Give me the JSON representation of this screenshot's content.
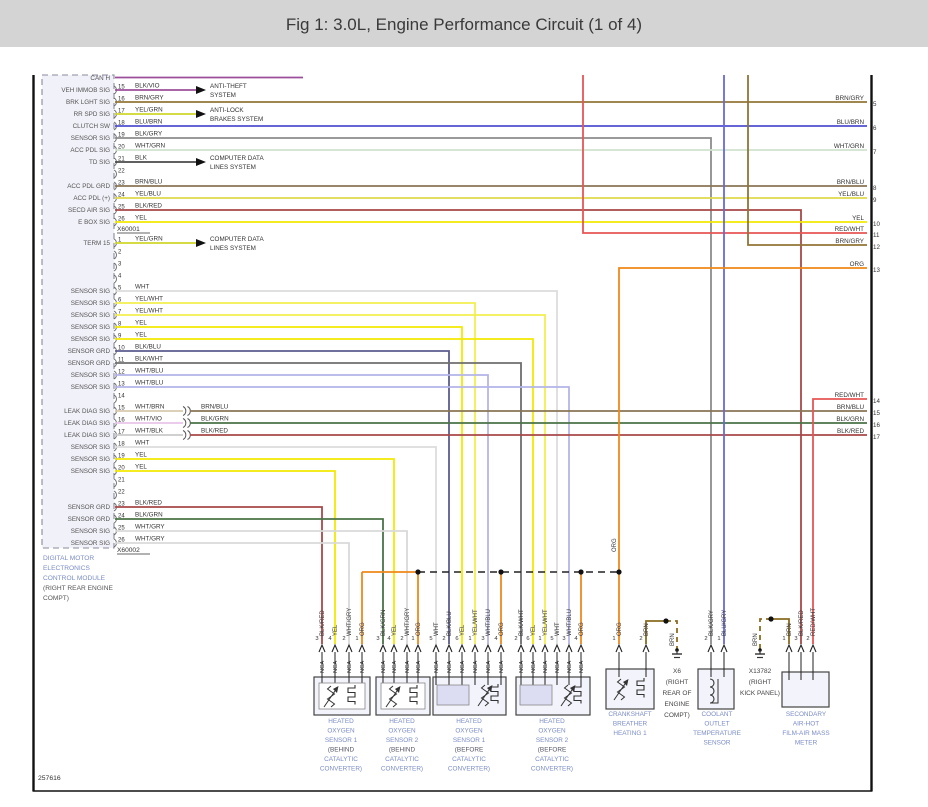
{
  "header": {
    "title": "Fig 1: 3.0L, Engine Performance Circuit (1 of 4)"
  },
  "figure_number": "257616",
  "org_label": "ORG",
  "ground_wire_color": "BRN",
  "wire_colors": {
    "BLK/VIO": "#9b4f9b",
    "BRN/GRY": "#927436",
    "YEL/GRN": "#cfd62a",
    "BLU/BRN": "#4f4fd0",
    "BLK/GRY": "#8c8c8c",
    "WHT/GRN": "#cfe3cf",
    "BLK": "#4a4a4a",
    "BRN/BLU": "#8a7454",
    "YEL/BLU": "#e0da4a",
    "BLK/RED": "#a84848",
    "YEL": "#f2ea00",
    "RED/WHT": "#e85555",
    "ORG": "#f08818",
    "WHT": "#dcdcdc",
    "YEL/WHT": "#f4ef4f",
    "BLK/BLU": "#5c5c8e",
    "BLK/WHT": "#6e6e6e",
    "WHT/BLU": "#b4b4ea",
    "WHT/BRN": "#d8c9ae",
    "WHT/VIO": "#eac4ea",
    "WHT/BLK": "#c9c9c9",
    "BLK/GRN": "#4a7346",
    "WHT/GRY": "#d9d9d9",
    "BLU/GRY": "#6868e0",
    "BRN": "#8a6c20"
  },
  "system_arrows": {
    "anti_theft": [
      "ANTI-THEFT",
      "SYSTEM"
    ],
    "abs": [
      "ANTI-LOCK",
      "BRAKES SYSTEM"
    ],
    "cdl": [
      "COMPUTER DATA",
      "LINES SYSTEM"
    ]
  },
  "dme": {
    "top_label": "CAN H",
    "caption_lines": [
      "DIGITAL MOTOR",
      "ELECTRONICS",
      "CONTROL MODULE",
      "(RIGHT REAR ENGINE",
      "COMPT)"
    ],
    "x60001": {
      "id": "X60001",
      "pins": [
        {
          "num": "15",
          "signal": "VEH IMMOB SIG",
          "color": "BLK/VIO"
        },
        {
          "num": "16",
          "signal": "BRK LGHT SIG",
          "color": "BRN/GRY"
        },
        {
          "num": "17",
          "signal": "RR SPD SIG",
          "color": "YEL/GRN"
        },
        {
          "num": "18",
          "signal": "CLUTCH SW",
          "color": "BLU/BRN"
        },
        {
          "num": "19",
          "signal": "SENSOR SIG",
          "color": "BLK/GRY"
        },
        {
          "num": "20",
          "signal": "ACC PDL SIG",
          "color": "WHT/GRN"
        },
        {
          "num": "21",
          "signal": "TD SIG",
          "color": "BLK"
        },
        {
          "num": "22",
          "signal": "",
          "color": ""
        },
        {
          "num": "23",
          "signal": "ACC PDL GRD",
          "color": "BRN/BLU"
        },
        {
          "num": "24",
          "signal": "ACC PDL (+)",
          "color": "YEL/BLU"
        },
        {
          "num": "25",
          "signal": "SECD AIR SIG",
          "color": "BLK/RED"
        },
        {
          "num": "26",
          "signal": "E BOX SIG",
          "color": "YEL"
        }
      ]
    },
    "x60002": {
      "id": "X60002",
      "pins": [
        {
          "num": "1",
          "signal": "TERM 15",
          "color": "YEL/GRN"
        },
        {
          "num": "2",
          "signal": "",
          "color": ""
        },
        {
          "num": "3",
          "signal": "",
          "color": ""
        },
        {
          "num": "4",
          "signal": "",
          "color": ""
        },
        {
          "num": "5",
          "signal": "SENSOR SIG",
          "color": "WHT"
        },
        {
          "num": "6",
          "signal": "SENSOR SIG",
          "color": "YEL/WHT"
        },
        {
          "num": "7",
          "signal": "SENSOR SIG",
          "color": "YEL/WHT"
        },
        {
          "num": "8",
          "signal": "SENSOR SIG",
          "color": "YEL"
        },
        {
          "num": "9",
          "signal": "SENSOR SIG",
          "color": "YEL"
        },
        {
          "num": "10",
          "signal": "SENSOR GRD",
          "color": "BLK/BLU"
        },
        {
          "num": "11",
          "signal": "SENSOR GRD",
          "color": "BLK/WHT"
        },
        {
          "num": "12",
          "signal": "SENSOR SIG",
          "color": "WHT/BLU"
        },
        {
          "num": "13",
          "signal": "SENSOR SIG",
          "color": "WHT/BLU"
        },
        {
          "num": "14",
          "signal": "",
          "color": ""
        },
        {
          "num": "15",
          "signal": "LEAK DIAG SIG",
          "color": "WHT/BRN",
          "splice_to": "BRN/BLU"
        },
        {
          "num": "16",
          "signal": "LEAK DIAG SIG",
          "color": "WHT/VIO",
          "splice_to": "BLK/GRN"
        },
        {
          "num": "17",
          "signal": "LEAK DIAG SIG",
          "color": "WHT/BLK",
          "splice_to": "BLK/RED"
        },
        {
          "num": "18",
          "signal": "SENSOR SIG",
          "color": "WHT"
        },
        {
          "num": "19",
          "signal": "SENSOR SIG",
          "color": "YEL"
        },
        {
          "num": "20",
          "signal": "SENSOR SIG",
          "color": "YEL"
        },
        {
          "num": "21",
          "signal": "",
          "color": ""
        },
        {
          "num": "22",
          "signal": "",
          "color": ""
        },
        {
          "num": "23",
          "signal": "SENSOR GRD",
          "color": "BLK/RED"
        },
        {
          "num": "24",
          "signal": "SENSOR GRD",
          "color": "BLK/GRN"
        },
        {
          "num": "25",
          "signal": "SENSOR SIG",
          "color": "WHT/GRY"
        },
        {
          "num": "26",
          "signal": "SENSOR SIG",
          "color": "WHT/GRY"
        }
      ]
    }
  },
  "right_edge": [
    {
      "num": "5",
      "color": "BRN/GRY"
    },
    {
      "num": "6",
      "color": "BLU/BRN"
    },
    {
      "num": "7",
      "color": "WHT/GRN"
    },
    {
      "num": "8",
      "color": "BRN/BLU"
    },
    {
      "num": "9",
      "color": "YEL/BLU"
    },
    {
      "num": "10",
      "color": "YEL"
    },
    {
      "num": "11",
      "color": "RED/WHT"
    },
    {
      "num": "12",
      "color": "BRN/GRY"
    },
    {
      "num": "13",
      "color": "ORG"
    },
    {
      "num": "14",
      "color": "RED/WHT"
    },
    {
      "num": "15",
      "color": "BRN/BLU"
    },
    {
      "num": "16",
      "color": "BLK/GRN"
    },
    {
      "num": "17",
      "color": "BLK/RED"
    }
  ],
  "components": [
    {
      "id": "ho2s-1-behind",
      "nca": "NCA",
      "label_lines": [
        "HEATED",
        "OXYGEN",
        "SENSOR 1",
        "(BEHIND",
        "CATALYTIC",
        "CONVERTER)"
      ],
      "pins": [
        {
          "num": "3",
          "color": "BLK/RED"
        },
        {
          "num": "4",
          "color": "YEL"
        },
        {
          "num": "2",
          "color": "WHT/GRY"
        },
        {
          "num": "1",
          "color": "ORG"
        }
      ]
    },
    {
      "id": "ho2s-2-behind",
      "nca": "NCA",
      "label_lines": [
        "HEATED",
        "OXYGEN",
        "SENSOR 2",
        "(BEHIND",
        "CATALYTIC",
        "CONVERTER)"
      ],
      "pins": [
        {
          "num": "3",
          "color": "BLK/GRN"
        },
        {
          "num": "4",
          "color": "YEL"
        },
        {
          "num": "2",
          "color": "WHT/GRY"
        },
        {
          "num": "1",
          "color": "ORG"
        }
      ]
    },
    {
      "id": "ho2s-1-before",
      "nca": "NCA",
      "label_lines": [
        "HEATED",
        "OXYGEN",
        "SENSOR 1",
        "(BEFORE",
        "CATALYTIC",
        "CONVERTER)"
      ],
      "pins": [
        {
          "num": "5",
          "color": "WHT"
        },
        {
          "num": "2",
          "color": "BLK/BLU"
        },
        {
          "num": "6",
          "color": "YEL"
        },
        {
          "num": "1",
          "color": "YEL/WHT"
        },
        {
          "num": "3",
          "color": "WHT/BLU"
        },
        {
          "num": "4",
          "color": "ORG"
        }
      ]
    },
    {
      "id": "ho2s-2-before",
      "nca": "NCA",
      "label_lines": [
        "HEATED",
        "OXYGEN",
        "SENSOR 2",
        "(BEFORE",
        "CATALYTIC",
        "CONVERTER)"
      ],
      "pins": [
        {
          "num": "2",
          "color": "BLK/WHT"
        },
        {
          "num": "6",
          "color": "YEL"
        },
        {
          "num": "1",
          "color": "YEL/WHT"
        },
        {
          "num": "5",
          "color": "WHT"
        },
        {
          "num": "3",
          "color": "WHT/BLU"
        },
        {
          "num": "4",
          "color": "ORG"
        }
      ]
    },
    {
      "id": "crankshaft-breather-heating",
      "label_lines": [
        "CRANKSHAFT",
        "BREATHER",
        "HEATING 1"
      ],
      "pins": [
        {
          "num": "1",
          "color": "ORG"
        },
        {
          "num": "2",
          "color": "BRN"
        }
      ]
    },
    {
      "id": "coolant-outlet-temp-sensor",
      "label_lines": [
        "COOLANT",
        "OUTLET",
        "TEMPERATURE",
        "SENSOR"
      ],
      "pins": [
        {
          "num": "2",
          "color": "BLK/GRY"
        },
        {
          "num": "1",
          "color": "BLU/GRY"
        }
      ]
    },
    {
      "id": "secondary-air-mass-meter",
      "label_lines": [
        "SECONDARY",
        "AIR-HOT",
        "FILM-AIR MASS",
        "METER"
      ],
      "pins": [
        {
          "num": "1",
          "color": "BRN"
        },
        {
          "num": "3",
          "color": "BLK/RED"
        },
        {
          "num": "2",
          "color": "RED/WHT"
        }
      ]
    }
  ],
  "grounds": [
    {
      "id": "X6",
      "lines": [
        "X6",
        "(RIGHT",
        "REAR OF",
        "ENGINE",
        "COMPT)"
      ]
    },
    {
      "id": "X13782",
      "lines": [
        "X13782",
        "(RIGHT",
        "KICK PANEL)"
      ]
    }
  ]
}
